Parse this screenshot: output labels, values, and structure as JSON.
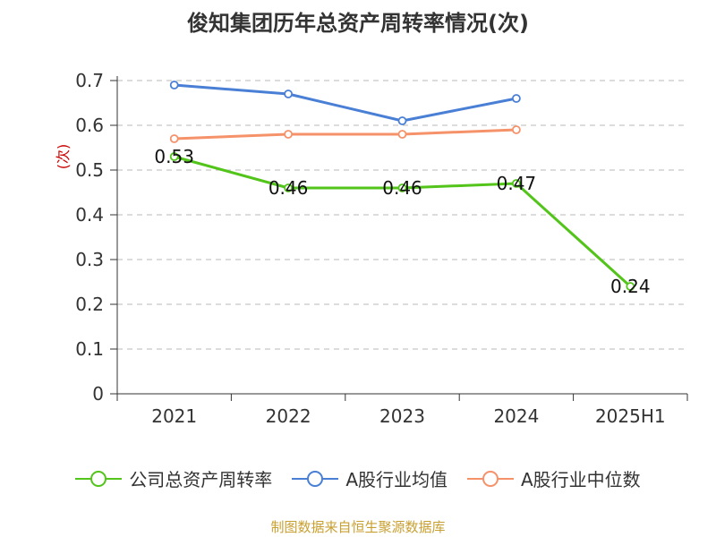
{
  "colors": {
    "series_1": "#52c41a",
    "series_2": "#4a7fd6",
    "series_3": "#f5926a",
    "grid": "#c8c8c8",
    "axis": "#333333",
    "unit": "#cc0000",
    "source": "#c8a032"
  },
  "source_note": "制图数据来自恒生聚源数据库",
  "chart_data": {
    "type": "line",
    "title": "俊知集团历年总资产周转率情况(次)",
    "xlabel": "",
    "ylabel": "(次)",
    "categories": [
      "2021",
      "2022",
      "2023",
      "2024",
      "2025H1"
    ],
    "yticks": [
      "0",
      "0.1",
      "0.2",
      "0.3",
      "0.4",
      "0.5",
      "0.6",
      "0.7"
    ],
    "ylim": [
      0,
      0.7
    ],
    "grid": true,
    "legend_position": "bottom",
    "series": [
      {
        "name": "公司总资产周转率",
        "values": [
          0.53,
          0.46,
          0.46,
          0.47,
          0.24
        ],
        "labels": [
          "0.53",
          "0.46",
          "0.46",
          "0.47",
          "0.24"
        ]
      },
      {
        "name": "A股行业均值",
        "values": [
          0.69,
          0.67,
          0.61,
          0.66,
          null
        ]
      },
      {
        "name": "A股行业中位数",
        "values": [
          0.57,
          0.58,
          0.58,
          0.59,
          null
        ]
      }
    ]
  }
}
